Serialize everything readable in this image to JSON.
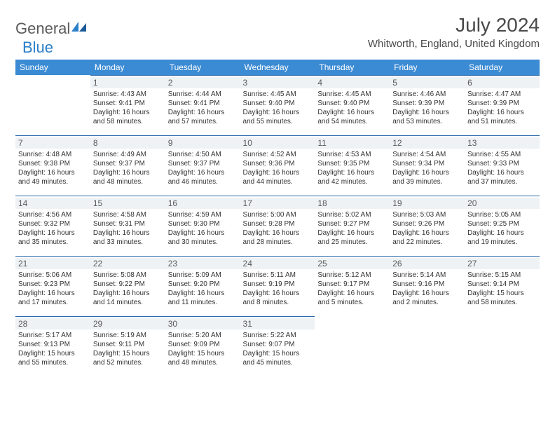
{
  "logo": {
    "text1": "General",
    "text2": "Blue"
  },
  "title": "July 2024",
  "location": "Whitworth, England, United Kingdom",
  "colors": {
    "header_bg": "#3b8bd4",
    "header_text": "#ffffff",
    "daynum_bg": "#eef2f5",
    "cell_border": "#2b6aa8",
    "body_text": "#333333",
    "title_text": "#4a4a4a",
    "logo_gray": "#5a5a5a",
    "logo_blue": "#2a7fc9"
  },
  "day_headers": [
    "Sunday",
    "Monday",
    "Tuesday",
    "Wednesday",
    "Thursday",
    "Friday",
    "Saturday"
  ],
  "weeks": [
    [
      null,
      {
        "n": "1",
        "sr": "4:43 AM",
        "ss": "9:41 PM",
        "dl": "16 hours and 58 minutes."
      },
      {
        "n": "2",
        "sr": "4:44 AM",
        "ss": "9:41 PM",
        "dl": "16 hours and 57 minutes."
      },
      {
        "n": "3",
        "sr": "4:45 AM",
        "ss": "9:40 PM",
        "dl": "16 hours and 55 minutes."
      },
      {
        "n": "4",
        "sr": "4:45 AM",
        "ss": "9:40 PM",
        "dl": "16 hours and 54 minutes."
      },
      {
        "n": "5",
        "sr": "4:46 AM",
        "ss": "9:39 PM",
        "dl": "16 hours and 53 minutes."
      },
      {
        "n": "6",
        "sr": "4:47 AM",
        "ss": "9:39 PM",
        "dl": "16 hours and 51 minutes."
      }
    ],
    [
      {
        "n": "7",
        "sr": "4:48 AM",
        "ss": "9:38 PM",
        "dl": "16 hours and 49 minutes."
      },
      {
        "n": "8",
        "sr": "4:49 AM",
        "ss": "9:37 PM",
        "dl": "16 hours and 48 minutes."
      },
      {
        "n": "9",
        "sr": "4:50 AM",
        "ss": "9:37 PM",
        "dl": "16 hours and 46 minutes."
      },
      {
        "n": "10",
        "sr": "4:52 AM",
        "ss": "9:36 PM",
        "dl": "16 hours and 44 minutes."
      },
      {
        "n": "11",
        "sr": "4:53 AM",
        "ss": "9:35 PM",
        "dl": "16 hours and 42 minutes."
      },
      {
        "n": "12",
        "sr": "4:54 AM",
        "ss": "9:34 PM",
        "dl": "16 hours and 39 minutes."
      },
      {
        "n": "13",
        "sr": "4:55 AM",
        "ss": "9:33 PM",
        "dl": "16 hours and 37 minutes."
      }
    ],
    [
      {
        "n": "14",
        "sr": "4:56 AM",
        "ss": "9:32 PM",
        "dl": "16 hours and 35 minutes."
      },
      {
        "n": "15",
        "sr": "4:58 AM",
        "ss": "9:31 PM",
        "dl": "16 hours and 33 minutes."
      },
      {
        "n": "16",
        "sr": "4:59 AM",
        "ss": "9:30 PM",
        "dl": "16 hours and 30 minutes."
      },
      {
        "n": "17",
        "sr": "5:00 AM",
        "ss": "9:28 PM",
        "dl": "16 hours and 28 minutes."
      },
      {
        "n": "18",
        "sr": "5:02 AM",
        "ss": "9:27 PM",
        "dl": "16 hours and 25 minutes."
      },
      {
        "n": "19",
        "sr": "5:03 AM",
        "ss": "9:26 PM",
        "dl": "16 hours and 22 minutes."
      },
      {
        "n": "20",
        "sr": "5:05 AM",
        "ss": "9:25 PM",
        "dl": "16 hours and 19 minutes."
      }
    ],
    [
      {
        "n": "21",
        "sr": "5:06 AM",
        "ss": "9:23 PM",
        "dl": "16 hours and 17 minutes."
      },
      {
        "n": "22",
        "sr": "5:08 AM",
        "ss": "9:22 PM",
        "dl": "16 hours and 14 minutes."
      },
      {
        "n": "23",
        "sr": "5:09 AM",
        "ss": "9:20 PM",
        "dl": "16 hours and 11 minutes."
      },
      {
        "n": "24",
        "sr": "5:11 AM",
        "ss": "9:19 PM",
        "dl": "16 hours and 8 minutes."
      },
      {
        "n": "25",
        "sr": "5:12 AM",
        "ss": "9:17 PM",
        "dl": "16 hours and 5 minutes."
      },
      {
        "n": "26",
        "sr": "5:14 AM",
        "ss": "9:16 PM",
        "dl": "16 hours and 2 minutes."
      },
      {
        "n": "27",
        "sr": "5:15 AM",
        "ss": "9:14 PM",
        "dl": "15 hours and 58 minutes."
      }
    ],
    [
      {
        "n": "28",
        "sr": "5:17 AM",
        "ss": "9:13 PM",
        "dl": "15 hours and 55 minutes."
      },
      {
        "n": "29",
        "sr": "5:19 AM",
        "ss": "9:11 PM",
        "dl": "15 hours and 52 minutes."
      },
      {
        "n": "30",
        "sr": "5:20 AM",
        "ss": "9:09 PM",
        "dl": "15 hours and 48 minutes."
      },
      {
        "n": "31",
        "sr": "5:22 AM",
        "ss": "9:07 PM",
        "dl": "15 hours and 45 minutes."
      },
      null,
      null,
      null
    ]
  ],
  "labels": {
    "sunrise": "Sunrise: ",
    "sunset": "Sunset: ",
    "daylight": "Daylight: "
  }
}
